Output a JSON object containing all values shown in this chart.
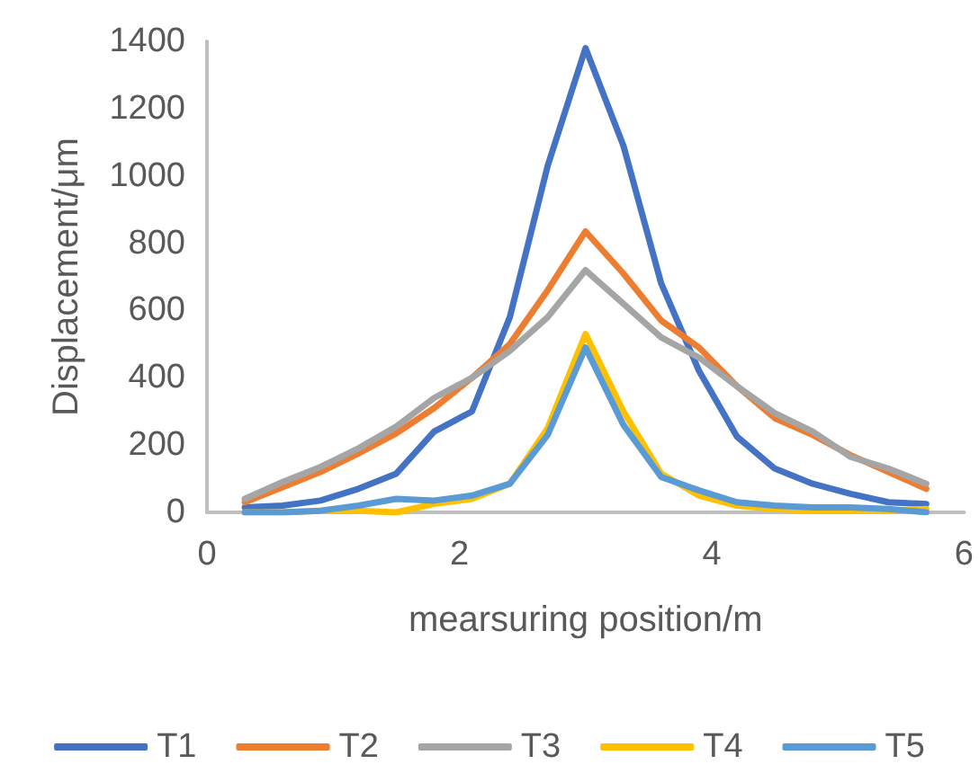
{
  "chart_data": {
    "type": "line",
    "xlabel": "mearsuring position/m",
    "ylabel": "Displacement/μm",
    "x": [
      0.3,
      0.6,
      0.9,
      1.2,
      1.5,
      1.8,
      2.1,
      2.4,
      2.7,
      3.0,
      3.3,
      3.6,
      3.9,
      4.2,
      4.5,
      4.8,
      5.1,
      5.4,
      5.7
    ],
    "series": [
      {
        "name": "T1",
        "color": "#4472c4",
        "values": [
          15,
          20,
          35,
          70,
          115,
          240,
          300,
          580,
          1030,
          1380,
          1090,
          680,
          420,
          225,
          130,
          85,
          55,
          30,
          25
        ]
      },
      {
        "name": "T2",
        "color": "#ed7d31",
        "values": [
          30,
          75,
          120,
          175,
          235,
          310,
          400,
          500,
          660,
          835,
          710,
          570,
          490,
          375,
          280,
          230,
          170,
          120,
          70
        ]
      },
      {
        "name": "T3",
        "color": "#a5a5a5",
        "values": [
          40,
          90,
          135,
          190,
          255,
          340,
          400,
          480,
          580,
          720,
          620,
          520,
          460,
          375,
          295,
          240,
          165,
          130,
          85
        ]
      },
      {
        "name": "T4",
        "color": "#ffc000",
        "values": [
          0,
          0,
          5,
          5,
          0,
          25,
          40,
          85,
          250,
          530,
          300,
          115,
          50,
          20,
          10,
          5,
          5,
          5,
          10
        ]
      },
      {
        "name": "T5",
        "color": "#5b9bd5",
        "values": [
          0,
          0,
          5,
          20,
          40,
          35,
          50,
          85,
          230,
          490,
          260,
          105,
          65,
          30,
          20,
          15,
          15,
          10,
          0
        ]
      }
    ],
    "xlim": [
      0,
      6
    ],
    "xticks": [
      0,
      2,
      4,
      6
    ],
    "ylim": [
      0,
      1400
    ],
    "yticks": [
      0,
      200,
      400,
      600,
      800,
      1000,
      1200,
      1400
    ],
    "grid": false,
    "legend": "bottom",
    "marker": "none",
    "line_style": "solid"
  }
}
